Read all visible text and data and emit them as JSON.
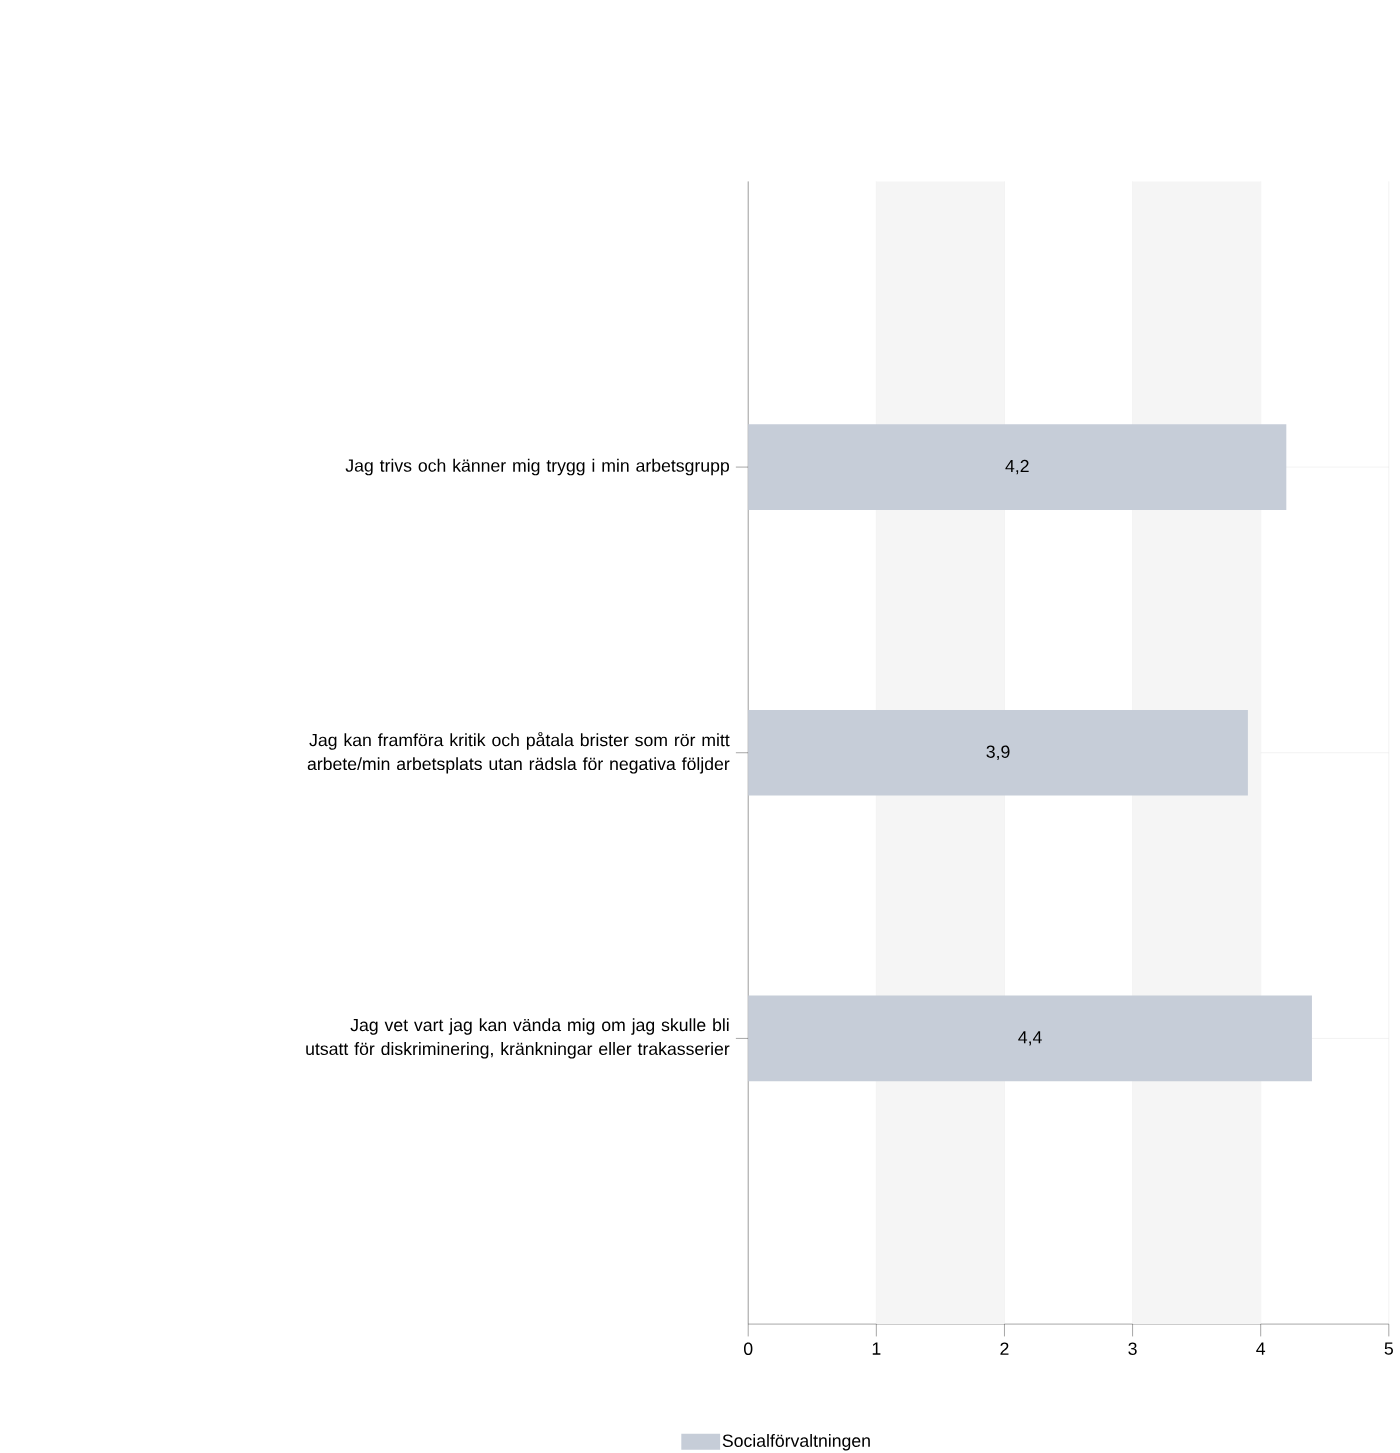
{
  "chart_data": {
    "type": "bar",
    "orientation": "horizontal",
    "categories": [
      "Jag trivs och känner mig trygg i min arbetsgrupp",
      "Jag kan framföra kritik och påtala brister som rör mitt arbete/min arbetsplats utan rädsla för negativa följder",
      "Jag vet vart jag kan vända mig om jag skulle bli utsatt för diskriminering, kränkningar eller trakasserier"
    ],
    "series": [
      {
        "name": "Socialförvaltningen",
        "color": "#c6cdd8",
        "values": [
          4.2,
          3.9,
          4.4
        ],
        "value_labels": [
          "4,2",
          "3,9",
          "4,4"
        ]
      }
    ],
    "xlim": [
      0,
      5
    ],
    "xticks": [
      0,
      1,
      2,
      3,
      4,
      5
    ],
    "bands": [
      {
        "axis": "x",
        "from": 1,
        "to": 2,
        "color": "#f5f5f5"
      },
      {
        "axis": "x",
        "from": 3,
        "to": 4,
        "color": "#f5f5f5"
      }
    ],
    "grid": true,
    "legend": "bottom"
  }
}
